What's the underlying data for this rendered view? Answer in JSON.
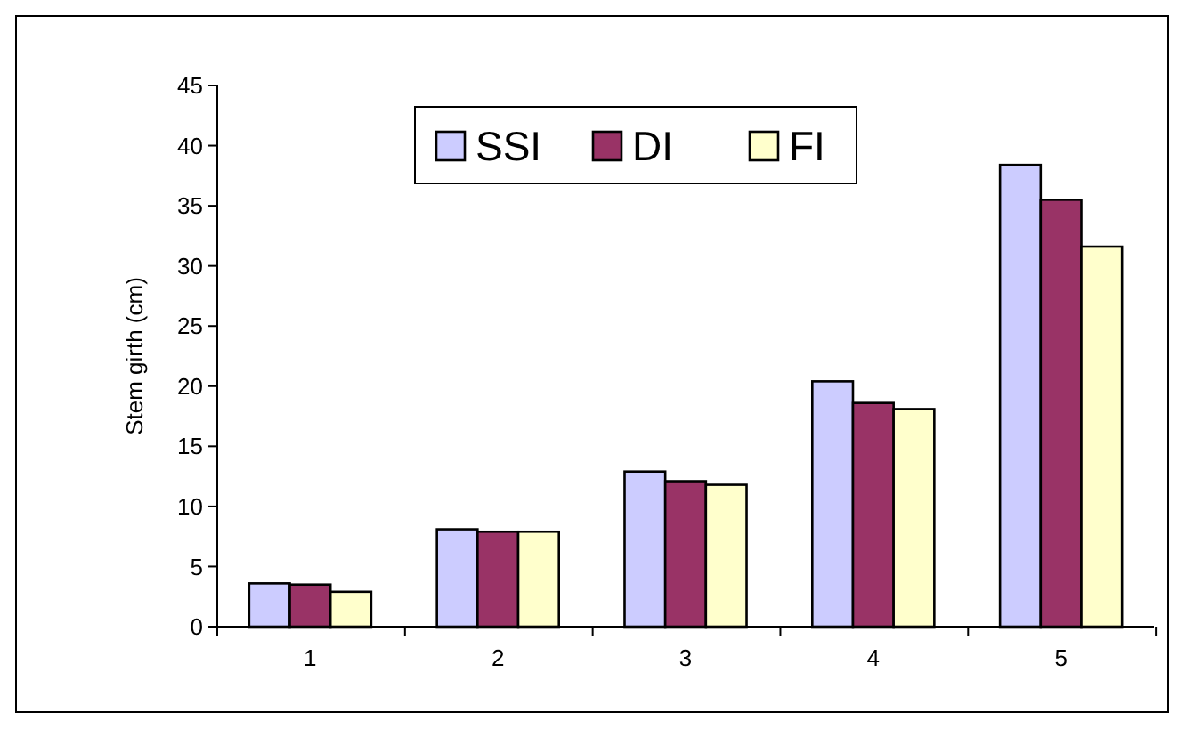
{
  "chart_data": {
    "type": "bar",
    "ylabel": "Stem girth (cm)",
    "categories": [
      "1",
      "2",
      "3",
      "4",
      "5"
    ],
    "series": [
      {
        "name": "SSI",
        "color": "#ccccff",
        "values": [
          3.6,
          8.1,
          12.9,
          20.4,
          38.4
        ]
      },
      {
        "name": "DI",
        "color": "#993366",
        "values": [
          3.5,
          7.9,
          12.1,
          18.6,
          35.5
        ]
      },
      {
        "name": "FI",
        "color": "#ffffcc",
        "values": [
          2.9,
          7.9,
          11.8,
          18.1,
          31.6
        ]
      }
    ],
    "ylim": [
      0,
      45
    ],
    "yticks": [
      0,
      5,
      10,
      15,
      20,
      25,
      30,
      35,
      40,
      45
    ],
    "grid": false,
    "legend": "top"
  }
}
